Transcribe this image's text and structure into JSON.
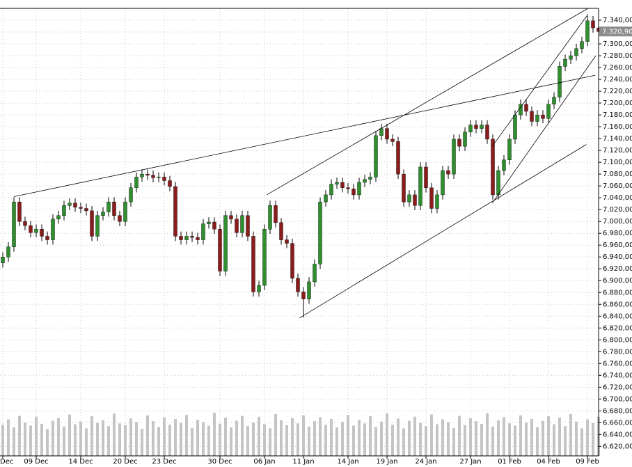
{
  "chart_data": {
    "type": "candlestick",
    "categories": [
      "Dec",
      null,
      null,
      null,
      null,
      null,
      "09 Dec",
      null,
      null,
      null,
      null,
      null,
      null,
      null,
      "14 Dec",
      null,
      null,
      null,
      null,
      null,
      null,
      null,
      "20 Dec",
      null,
      null,
      null,
      null,
      null,
      null,
      "23 Dec",
      null,
      null,
      null,
      null,
      null,
      null,
      null,
      null,
      null,
      "30 Dec",
      null,
      null,
      null,
      null,
      null,
      null,
      null,
      "06 Jan",
      null,
      null,
      null,
      null,
      null,
      null,
      "11 Jan",
      null,
      null,
      null,
      null,
      null,
      null,
      null,
      "14 Jan",
      null,
      null,
      null,
      null,
      null,
      null,
      "19 Jan",
      null,
      null,
      null,
      null,
      null,
      null,
      "24 Jan",
      null,
      null,
      null,
      null,
      null,
      null,
      null,
      "27 Jan",
      null,
      null,
      null,
      null,
      null,
      null,
      "01 Feb",
      null,
      null,
      null,
      null,
      null,
      null,
      "04 Feb",
      null,
      null,
      null,
      null,
      null,
      null,
      "09 Feb",
      null,
      null
    ],
    "open": [
      6930,
      6940,
      6957,
      7033,
      7000,
      6993,
      6981,
      6987,
      6975,
      6969,
      7004,
      7010,
      7027,
      7031,
      7024,
      7022,
      7018,
      6975,
      7010,
      7016,
      7033,
      7010,
      7000,
      7033,
      7057,
      7075,
      7080,
      7078,
      7074,
      7075,
      7069,
      7059,
      6975,
      6969,
      6975,
      6973,
      6969,
      6996,
      6999,
      6987,
      6916,
      7010,
      7004,
      6981,
      7010,
      6975,
      6881,
      6892,
      6987,
      7027,
      6998,
      6969,
      6963,
      6904,
      6881,
      6869,
      6898,
      6928,
      7033,
      7045,
      7063,
      7066,
      7057,
      7055,
      7045,
      7066,
      7071,
      7075,
      7145,
      7157,
      7139,
      7135,
      7080,
      7033,
      7045,
      7027,
      7092,
      7057,
      7022,
      7045,
      7086,
      7080,
      7139,
      7127,
      7151,
      7163,
      7157,
      7163,
      7139,
      7045,
      7086,
      7104,
      7139,
      7180,
      7198,
      7186,
      7169,
      7180,
      7174,
      7198,
      7210,
      7262,
      7274,
      7280,
      7292,
      7304,
      7339,
      7327
    ],
    "high": [
      6948,
      6965,
      7041,
      7041,
      7008,
      7001,
      6995,
      6995,
      6983,
      7012,
      7018,
      7035,
      7039,
      7039,
      7032,
      7030,
      7026,
      7018,
      7024,
      7041,
      7041,
      7018,
      7041,
      7065,
      7083,
      7088,
      7088,
      7086,
      7083,
      7083,
      7077,
      7067,
      6983,
      6983,
      6983,
      6981,
      7004,
      7007,
      7007,
      6995,
      7018,
      7018,
      7012,
      7018,
      7018,
      6983,
      6900,
      6995,
      7035,
      7035,
      7006,
      6977,
      6971,
      6912,
      6889,
      6906,
      6936,
      7041,
      7053,
      7071,
      7074,
      7074,
      7065,
      7063,
      7074,
      7079,
      7083,
      7153,
      7165,
      7165,
      7147,
      7143,
      7088,
      7053,
      7053,
      7100,
      7100,
      7065,
      7053,
      7094,
      7094,
      7147,
      7147,
      7159,
      7171,
      7171,
      7171,
      7171,
      7147,
      7094,
      7112,
      7147,
      7188,
      7206,
      7206,
      7194,
      7188,
      7188,
      7206,
      7218,
      7270,
      7282,
      7288,
      7300,
      7312,
      7347,
      7347,
      7335
    ],
    "low": [
      6922,
      6932,
      6949,
      6992,
      6985,
      6973,
      6973,
      6967,
      6961,
      6961,
      6996,
      7002,
      7019,
      7016,
      7014,
      7010,
      6967,
      6967,
      7002,
      7008,
      7002,
      6992,
      6992,
      7025,
      7049,
      7067,
      7070,
      7066,
      7066,
      7061,
      7051,
      6967,
      6961,
      6961,
      6965,
      6961,
      6961,
      6988,
      6979,
      6908,
      6908,
      6996,
      6973,
      6973,
      6967,
      6873,
      6873,
      6884,
      6979,
      6990,
      6961,
      6955,
      6896,
      6873,
      6838,
      6861,
      6890,
      6920,
      7025,
      7037,
      7055,
      7049,
      7047,
      7037,
      7037,
      7058,
      7063,
      7067,
      7137,
      7131,
      7127,
      7072,
      7025,
      7025,
      7019,
      7019,
      7049,
      7014,
      7014,
      7037,
      7072,
      7072,
      7119,
      7119,
      7143,
      7149,
      7149,
      7131,
      7037,
      7037,
      7078,
      7096,
      7131,
      7172,
      7178,
      7161,
      7161,
      7166,
      7166,
      7190,
      7202,
      7254,
      7266,
      7272,
      7284,
      7296,
      7319,
      7313
    ],
    "close": [
      6940,
      6957,
      7033,
      7000,
      6993,
      6981,
      6987,
      6975,
      6969,
      7004,
      7010,
      7027,
      7031,
      7024,
      7022,
      7018,
      6975,
      7010,
      7016,
      7033,
      7010,
      7000,
      7033,
      7057,
      7075,
      7080,
      7078,
      7074,
      7075,
      7069,
      7059,
      6975,
      6969,
      6975,
      6973,
      6969,
      6996,
      6999,
      6987,
      6916,
      7010,
      7004,
      6981,
      7010,
      6975,
      6881,
      6892,
      6987,
      7027,
      6998,
      6969,
      6963,
      6904,
      6881,
      6869,
      6898,
      6928,
      7033,
      7045,
      7063,
      7066,
      7057,
      7055,
      7045,
      7066,
      7071,
      7075,
      7145,
      7157,
      7139,
      7135,
      7080,
      7033,
      7045,
      7027,
      7092,
      7057,
      7022,
      7045,
      7086,
      7080,
      7139,
      7127,
      7151,
      7163,
      7157,
      7163,
      7139,
      7045,
      7086,
      7104,
      7139,
      7180,
      7198,
      7186,
      7169,
      7180,
      7174,
      7198,
      7210,
      7262,
      7274,
      7280,
      7292,
      7304,
      7339,
      7327,
      7321
    ],
    "up_color": "#2f8f2f",
    "down_color": "#8b1c1c",
    "volume": {
      "color": "#c4c4c4",
      "values": [
        70,
        82,
        64,
        90,
        75,
        68,
        88,
        72,
        60,
        79,
        85,
        66,
        93,
        71,
        77,
        62,
        89,
        74,
        80,
        67,
        95,
        73,
        69,
        84,
        76,
        61,
        91,
        78,
        65,
        87,
        70,
        83,
        74,
        92,
        63,
        81,
        76,
        68,
        97,
        72,
        86,
        64,
        79,
        90,
        67,
        75,
        88,
        71,
        62,
        94,
        80,
        69,
        85,
        73,
        91,
        66,
        78,
        87,
        70,
        83,
        64,
        76,
        92,
        68,
        81,
        73,
        89,
        65,
        77,
        95,
        70,
        84,
        62,
        79,
        88,
        74,
        67,
        93,
        71,
        82,
        76,
        63,
        90,
        69,
        85,
        78,
        72,
        96,
        66,
        80,
        87,
        73,
        68,
        91,
        75,
        83,
        64,
        79,
        89,
        71,
        86,
        67,
        94,
        77,
        62,
        82,
        74,
        88
      ]
    },
    "trendlines": [
      {
        "x": [
          2,
          106.4
        ],
        "y": [
          7042,
          7247
        ]
      },
      {
        "x": [
          47.4,
          105.1
        ],
        "y": [
          7045,
          7360
        ]
      },
      {
        "x": [
          53.3,
          104.8
        ],
        "y": [
          6837,
          7130
        ]
      },
      {
        "x": [
          87.9,
          106.5
        ],
        "y": [
          7031,
          7280
        ]
      },
      {
        "x": [
          87.9,
          105.1
        ],
        "y": [
          7127,
          7350
        ]
      }
    ],
    "last_price": {
      "value": 7320.9,
      "label": "7.320,90"
    },
    "ylim": [
      6604,
      7360
    ],
    "yticks": [
      {
        "value": 7340,
        "label": "7.340,00"
      },
      {
        "value": 7320,
        "label": "7.320,00"
      },
      {
        "value": 7300,
        "label": "7.300,00"
      },
      {
        "value": 7280,
        "label": "7.280,00"
      },
      {
        "value": 7260,
        "label": "7.260,00"
      },
      {
        "value": 7240,
        "label": "7.240,00"
      },
      {
        "value": 7220,
        "label": "7.220,00"
      },
      {
        "value": 7200,
        "label": "7.200,00"
      },
      {
        "value": 7180,
        "label": "7.180,00"
      },
      {
        "value": 7160,
        "label": "7.160,00"
      },
      {
        "value": 7140,
        "label": "7.140,00"
      },
      {
        "value": 7120,
        "label": "7.120,00"
      },
      {
        "value": 7100,
        "label": "7.100,00"
      },
      {
        "value": 7080,
        "label": "7.080,00"
      },
      {
        "value": 7060,
        "label": "7.060,00"
      },
      {
        "value": 7040,
        "label": "7.040,00"
      },
      {
        "value": 7020,
        "label": "7.020,00"
      },
      {
        "value": 7000,
        "label": "7.000,00"
      },
      {
        "value": 6980,
        "label": "6.980,00"
      },
      {
        "value": 6960,
        "label": "6.960,00"
      },
      {
        "value": 6940,
        "label": "6.940,00"
      },
      {
        "value": 6920,
        "label": "6.920,00"
      },
      {
        "value": 6900,
        "label": "6.900,00"
      },
      {
        "value": 6880,
        "label": "6.880,00"
      },
      {
        "value": 6860,
        "label": "6.860,00"
      },
      {
        "value": 6840,
        "label": "6.840,00"
      },
      {
        "value": 6820,
        "label": "6.820,00"
      },
      {
        "value": 6800,
        "label": "6.800,00"
      },
      {
        "value": 6780,
        "label": "6.780,00"
      },
      {
        "value": 6760,
        "label": "6.760,00"
      },
      {
        "value": 6740,
        "label": "6.740,00"
      },
      {
        "value": 6720,
        "label": "6.720,00"
      },
      {
        "value": 6700,
        "label": "6.700,00"
      },
      {
        "value": 6680,
        "label": "6.680,00"
      },
      {
        "value": 6660,
        "label": "6.660,00"
      },
      {
        "value": 6640,
        "label": "6.640,00"
      },
      {
        "value": 6620,
        "label": "6.620,00"
      }
    ],
    "grid": true
  }
}
